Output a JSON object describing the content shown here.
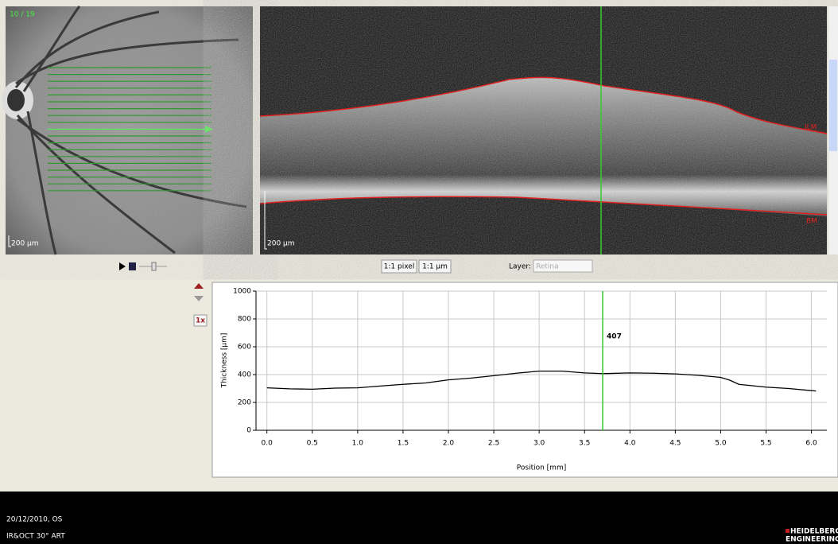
{
  "scan_index": "10 / 19",
  "ir_scale": "200 µm",
  "oct_scale": "200 µm",
  "layers": {
    "top": "ILM",
    "bottom": "BM"
  },
  "toolbar": {
    "pixel_button": "1:1 pixel",
    "micron_button": "1:1 µm",
    "layer_label": "Layer:",
    "layer_value": "Retina",
    "zoom_button": "1x"
  },
  "chart_data": {
    "type": "line",
    "ylabel": "Thickness [µm]",
    "xlabel": "Position [mm]",
    "x": [
      0,
      0.25,
      0.5,
      0.75,
      1.0,
      1.25,
      1.5,
      1.75,
      2.0,
      2.25,
      2.5,
      2.75,
      3.0,
      3.25,
      3.5,
      3.7,
      4.0,
      4.25,
      4.5,
      4.75,
      5.0,
      5.1,
      5.2,
      5.5,
      5.75,
      6.05
    ],
    "values": [
      305,
      298,
      295,
      303,
      305,
      318,
      330,
      340,
      362,
      375,
      392,
      410,
      425,
      425,
      412,
      407,
      412,
      410,
      405,
      395,
      380,
      360,
      330,
      310,
      300,
      282
    ],
    "color": "#000000",
    "xlim": [
      -0.12,
      6.17
    ],
    "ylim": [
      0,
      1000
    ],
    "xticks": [
      {
        "value": 0,
        "label": "0.0"
      },
      {
        "value": 0.5,
        "label": "0.5"
      },
      {
        "value": 1,
        "label": "1.0"
      },
      {
        "value": 1.5,
        "label": "1.5"
      },
      {
        "value": 2,
        "label": "2.0"
      },
      {
        "value": 2.5,
        "label": "2.5"
      },
      {
        "value": 3,
        "label": "3.0"
      },
      {
        "value": 3.5,
        "label": "3.5"
      },
      {
        "value": 4,
        "label": "4.0"
      },
      {
        "value": 4.5,
        "label": "4.5"
      },
      {
        "value": 5,
        "label": "5.0"
      },
      {
        "value": 5.5,
        "label": "5.5"
      },
      {
        "value": 6,
        "label": "6.0"
      }
    ],
    "yticks": [
      0,
      200,
      400,
      600,
      800,
      1000
    ],
    "grid": true,
    "cursor": {
      "x": 3.7,
      "label": 407,
      "color": "#33cc33"
    }
  },
  "footer": {
    "date": "20/12/2010, OS",
    "mode": "IR&OCT 30° ART",
    "brand": "HEIDELBERG",
    "brand_sub": "ENGINEERING"
  }
}
